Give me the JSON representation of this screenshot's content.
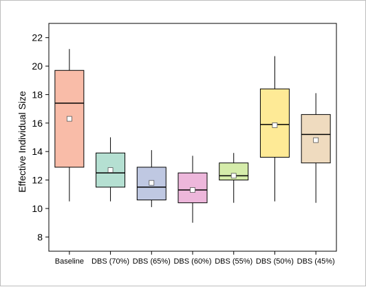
{
  "chart_data": {
    "type": "box",
    "title": "",
    "xlabel": "",
    "ylabel": "Effective Individual Size",
    "ylim": [
      7,
      23
    ],
    "yticks": [
      8,
      10,
      12,
      14,
      16,
      18,
      20,
      22
    ],
    "grid": false,
    "legend": "none",
    "categories": [
      "Baseline",
      "DBS (70%)",
      "DBS (65%)",
      "DBS (60%)",
      "DBS (55%)",
      "DBS (50%)",
      "DBS (45%)"
    ],
    "boxes": [
      {
        "whisker_low": 10.5,
        "q1": 12.9,
        "median": 17.4,
        "q3": 19.7,
        "whisker_high": 21.2,
        "mean": 16.3,
        "color": "#f9bca8"
      },
      {
        "whisker_low": 10.5,
        "q1": 11.5,
        "median": 12.5,
        "q3": 13.9,
        "whisker_high": 15.0,
        "mean": 12.7,
        "color": "#b5e0d2"
      },
      {
        "whisker_low": 10.1,
        "q1": 10.6,
        "median": 11.5,
        "q3": 12.9,
        "whisker_high": 14.1,
        "mean": 11.8,
        "color": "#bfc8e2"
      },
      {
        "whisker_low": 9.0,
        "q1": 10.4,
        "median": 11.3,
        "q3": 12.5,
        "whisker_high": 13.7,
        "mean": 11.3,
        "color": "#edb7db"
      },
      {
        "whisker_low": 10.4,
        "q1": 12.0,
        "median": 12.3,
        "q3": 13.2,
        "whisker_high": 13.9,
        "mean": 12.3,
        "color": "#d5ecaa"
      },
      {
        "whisker_low": 10.5,
        "q1": 13.6,
        "median": 15.9,
        "q3": 18.4,
        "whisker_high": 20.7,
        "mean": 15.85,
        "color": "#feea96"
      },
      {
        "whisker_low": 10.4,
        "q1": 13.2,
        "median": 15.2,
        "q3": 16.6,
        "whisker_high": 18.1,
        "mean": 14.8,
        "color": "#efdbbf"
      }
    ]
  }
}
